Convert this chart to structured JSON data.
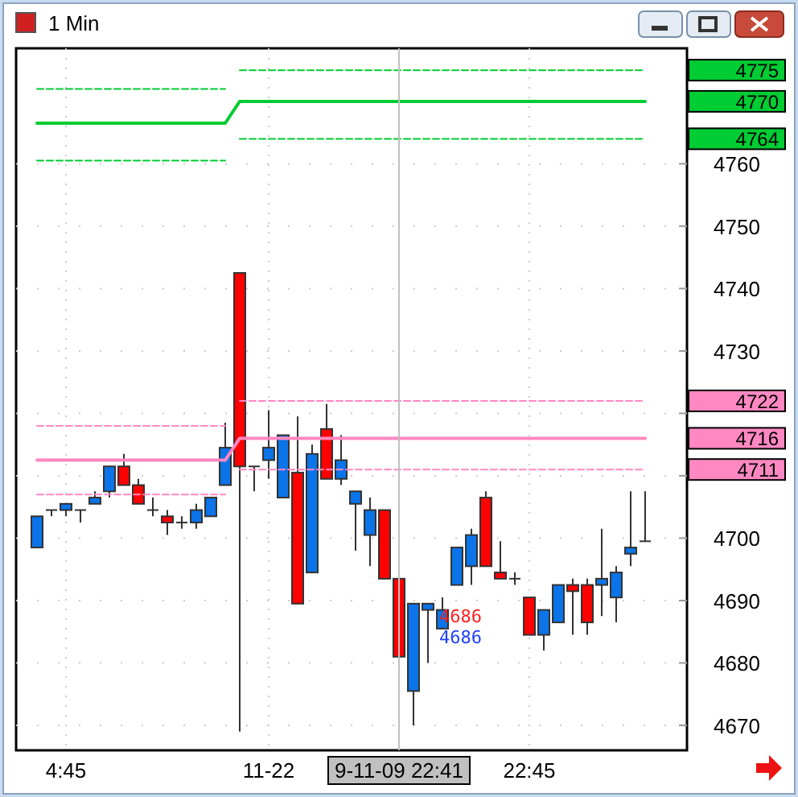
{
  "chart_data": {
    "type": "candlestick",
    "title": "1 Min",
    "categories": [
      null,
      null,
      "4:45",
      null,
      null,
      null,
      null,
      null,
      null,
      null,
      null,
      null,
      null,
      null,
      null,
      null,
      "11-22",
      null,
      null,
      null,
      null,
      null,
      null,
      null,
      null,
      "9-11-09 22:41",
      null,
      null,
      null,
      null,
      null,
      null,
      null,
      null,
      "22:45",
      null,
      null,
      null,
      null,
      null,
      null,
      null,
      null
    ],
    "ohlc": [
      [
        4698.5,
        4703.5,
        4698.5,
        4703.5
      ],
      [
        4704.5,
        4704.5,
        4703.5,
        4704.5
      ],
      [
        4704.5,
        4705.5,
        4703.5,
        4705.5
      ],
      [
        4704.5,
        4704.5,
        4702.5,
        4704.5
      ],
      [
        4705.5,
        4707.5,
        4705.5,
        4706.5
      ],
      [
        4707.5,
        4711.5,
        4706.5,
        4711.5
      ],
      [
        4711.5,
        4713.5,
        4708.5,
        4708.5
      ],
      [
        4708.5,
        4709.5,
        4705.5,
        4705.5
      ],
      [
        4704.5,
        4706.5,
        4703.5,
        4704.5
      ],
      [
        4703.5,
        4704.5,
        4700.5,
        4702.5
      ],
      [
        4702.5,
        4703.5,
        4701.5,
        4702.5
      ],
      [
        4702.5,
        4705.5,
        4701.5,
        4704.5
      ],
      [
        4703.5,
        4706.5,
        4703.5,
        4706.5
      ],
      [
        4708.5,
        4718.5,
        4708.5,
        4714.5
      ],
      [
        4742.5,
        4742.5,
        4669,
        4711.5
      ],
      [
        4711.5,
        4711.5,
        4707.5,
        4711.5
      ],
      [
        4712.5,
        4720.5,
        4709.5,
        4714.5
      ],
      [
        4706.5,
        4716.5,
        4706.5,
        4716.5
      ],
      [
        4710.5,
        4719.5,
        4689.5,
        4689.5
      ],
      [
        4694.5,
        4715,
        4694.5,
        4713.5
      ],
      [
        4717.5,
        4721.5,
        4709.5,
        4709.5
      ],
      [
        4709.5,
        4716.5,
        4708.5,
        4712.5
      ],
      [
        4705.5,
        4707.5,
        4698,
        4707.5
      ],
      [
        4700.5,
        4706.5,
        4695.5,
        4704.5
      ],
      [
        4704.5,
        4704.5,
        4693.5,
        4693.5
      ],
      [
        4693.5,
        4693.5,
        4681,
        4681
      ],
      [
        4675.5,
        4689.5,
        4670,
        4689.5
      ],
      [
        4688.5,
        4689.5,
        4680,
        4689.5
      ],
      [
        4685.5,
        4690.5,
        4685.5,
        4688.5
      ],
      [
        4692.5,
        4698.5,
        4692.5,
        4698.5
      ],
      [
        4695.5,
        4701.5,
        4692.5,
        4700.5
      ],
      [
        4706.5,
        4707.5,
        4695.5,
        4695.5
      ],
      [
        4694.5,
        4699.5,
        4693.5,
        4693.5
      ],
      [
        4693.5,
        4694.5,
        4692.5,
        4693.5
      ],
      [
        4690.5,
        4690.5,
        4684.5,
        4684.5
      ],
      [
        4684.5,
        4688.5,
        4682,
        4688.5
      ],
      [
        4686.5,
        4692.5,
        4686.5,
        4692.5
      ],
      [
        4692.5,
        4693.5,
        4684.5,
        4691.5
      ],
      [
        4692.5,
        4693.5,
        4684.5,
        4686.5
      ],
      [
        4692.5,
        4701.5,
        4687.5,
        4693.5
      ],
      [
        4690.5,
        4695.5,
        4686.5,
        4694.5
      ],
      [
        4697.5,
        4707.5,
        4695.5,
        4698.5
      ],
      [
        4699.5,
        4707.5,
        4699.5,
        4699.5
      ]
    ],
    "colors": [
      "#0a74e8",
      "#333333",
      "#0a74e8",
      "#333333",
      "#0a74e8",
      "#0a74e8",
      "#ff0000",
      "#ff0000",
      "#333333",
      "#ff0000",
      "#333333",
      "#0a74e8",
      "#0a74e8",
      "#0a74e8",
      "#ff0000",
      "#333333",
      "#0a74e8",
      "#0a74e8",
      "#ff0000",
      "#0a74e8",
      "#ff0000",
      "#0a74e8",
      "#0a74e8",
      "#0a74e8",
      "#ff0000",
      "#ff0000",
      "#0a74e8",
      "#0a74e8",
      "#0a74e8",
      "#0a74e8",
      "#0a74e8",
      "#ff0000",
      "#ff0000",
      "#333333",
      "#ff0000",
      "#0a74e8",
      "#0a74e8",
      "#ff0000",
      "#ff0000",
      "#0a74e8",
      "#0a74e8",
      "#0a74e8",
      "#333333"
    ],
    "series": [
      {
        "type": "line",
        "color": "#00cc33",
        "line_style": "solid",
        "values": [
          4766.5,
          4766.5,
          4766.5,
          4766.5,
          4766.5,
          4766.5,
          4766.5,
          4766.5,
          4766.5,
          4766.5,
          4766.5,
          4766.5,
          4766.5,
          4766.5,
          4770,
          4770,
          4770,
          4770,
          4770,
          4770,
          4770,
          4770,
          4770,
          4770,
          4770,
          4770,
          4770,
          4770,
          4770,
          4770,
          4770,
          4770,
          4770,
          4770,
          4770,
          4770,
          4770,
          4770,
          4770,
          4770,
          4770,
          4770,
          4770
        ]
      },
      {
        "type": "line",
        "color": "#00cc33",
        "line_style": "dashed",
        "values": [
          4772,
          4772,
          4772,
          4772,
          4772,
          4772,
          4772,
          4772,
          4772,
          4772,
          4772,
          4772,
          4772,
          4772,
          null,
          null,
          null,
          null,
          null,
          null,
          null,
          null,
          null,
          null,
          null,
          null,
          null,
          null,
          null,
          null,
          null,
          null,
          null,
          null,
          null,
          null,
          null,
          null,
          null,
          null,
          null,
          null,
          null
        ]
      },
      {
        "type": "line",
        "color": "#00cc33",
        "line_style": "dashed",
        "values": [
          null,
          null,
          null,
          null,
          null,
          null,
          null,
          null,
          null,
          null,
          null,
          null,
          null,
          null,
          4775,
          4775,
          4775,
          4775,
          4775,
          4775,
          4775,
          4775,
          4775,
          4775,
          4775,
          4775,
          4775,
          4775,
          4775,
          4775,
          4775,
          4775,
          4775,
          4775,
          4775,
          4775,
          4775,
          4775,
          4775,
          4775,
          4775,
          4775,
          4775
        ]
      },
      {
        "type": "line",
        "color": "#00cc33",
        "line_style": "dashed",
        "values": [
          4760.5,
          4760.5,
          4760.5,
          4760.5,
          4760.5,
          4760.5,
          4760.5,
          4760.5,
          4760.5,
          4760.5,
          4760.5,
          4760.5,
          4760.5,
          4760.5,
          null,
          null,
          null,
          null,
          null,
          null,
          null,
          null,
          null,
          null,
          null,
          null,
          null,
          null,
          null,
          null,
          null,
          null,
          null,
          null,
          null,
          null,
          null,
          null,
          null,
          null,
          null,
          null,
          null
        ]
      },
      {
        "type": "line",
        "color": "#00cc33",
        "line_style": "dashed",
        "values": [
          null,
          null,
          null,
          null,
          null,
          null,
          null,
          null,
          null,
          null,
          null,
          null,
          null,
          null,
          4764,
          4764,
          4764,
          4764,
          4764,
          4764,
          4764,
          4764,
          4764,
          4764,
          4764,
          4764,
          4764,
          4764,
          4764,
          4764,
          4764,
          4764,
          4764,
          4764,
          4764,
          4764,
          4764,
          4764,
          4764,
          4764,
          4764,
          4764,
          4764
        ]
      },
      {
        "type": "line",
        "color": "#ff88c2",
        "line_style": "solid",
        "values": [
          4712.5,
          4712.5,
          4712.5,
          4712.5,
          4712.5,
          4712.5,
          4712.5,
          4712.5,
          4712.5,
          4712.5,
          4712.5,
          4712.5,
          4712.5,
          4712.5,
          4716,
          4716,
          4716,
          4716,
          4716,
          4716,
          4716,
          4716,
          4716,
          4716,
          4716,
          4716,
          4716,
          4716,
          4716,
          4716,
          4716,
          4716,
          4716,
          4716,
          4716,
          4716,
          4716,
          4716,
          4716,
          4716,
          4716,
          4716,
          4716
        ]
      },
      {
        "type": "line",
        "color": "#ff88c2",
        "line_style": "dashed",
        "values": [
          4718,
          4718,
          4718,
          4718,
          4718,
          4718,
          4718,
          4718,
          4718,
          4718,
          4718,
          4718,
          4718,
          4718,
          null,
          null,
          null,
          null,
          null,
          null,
          null,
          null,
          null,
          null,
          null,
          null,
          null,
          null,
          null,
          null,
          null,
          null,
          null,
          null,
          null,
          null,
          null,
          null,
          null,
          null,
          null,
          null,
          null
        ]
      },
      {
        "type": "line",
        "color": "#ff88c2",
        "line_style": "dashed",
        "values": [
          null,
          null,
          null,
          null,
          null,
          null,
          null,
          null,
          null,
          null,
          null,
          null,
          null,
          null,
          4722,
          4722,
          4722,
          4722,
          4722,
          4722,
          4722,
          4722,
          4722,
          4722,
          4722,
          4722,
          4722,
          4722,
          4722,
          4722,
          4722,
          4722,
          4722,
          4722,
          4722,
          4722,
          4722,
          4722,
          4722,
          4722,
          4722,
          4722,
          4722
        ]
      },
      {
        "type": "line",
        "color": "#ff88c2",
        "line_style": "dashed",
        "values": [
          4707,
          4707,
          4707,
          4707,
          4707,
          4707,
          4707,
          4707,
          4707,
          4707,
          4707,
          4707,
          4707,
          4707,
          null,
          null,
          null,
          null,
          null,
          null,
          null,
          null,
          null,
          null,
          null,
          null,
          null,
          null,
          null,
          null,
          null,
          null,
          null,
          null,
          null,
          null,
          null,
          null,
          null,
          null,
          null,
          null,
          null
        ]
      },
      {
        "type": "line",
        "color": "#ff88c2",
        "line_style": "dashed",
        "values": [
          null,
          null,
          null,
          null,
          null,
          null,
          null,
          null,
          null,
          null,
          null,
          null,
          null,
          null,
          4711,
          4711,
          4711,
          4711,
          4711,
          4711,
          4711,
          4711,
          4711,
          4711,
          4711,
          4711,
          4711,
          4711,
          4711,
          4711,
          4711,
          4711,
          4711,
          4711,
          4711,
          4711,
          4711,
          4711,
          4711,
          4711,
          4711,
          4711,
          4711
        ]
      }
    ],
    "ylim": [
      4666,
      4778.5
    ],
    "yticks": [
      4670,
      4680,
      4690,
      4700,
      {
        "value": 4710,
        "label": null
      },
      {
        "value": 4720,
        "label": null
      },
      4730,
      4740,
      4750,
      4760
    ],
    "grid": true,
    "ref_lines": [
      {
        "axis": "x",
        "value": "9-11-09 22:41",
        "color": "#c0c0c0"
      }
    ],
    "annotations": [
      "4775",
      "4770",
      "4764",
      "4722",
      "4716",
      "4711",
      "4686",
      "4686"
    ]
  }
}
